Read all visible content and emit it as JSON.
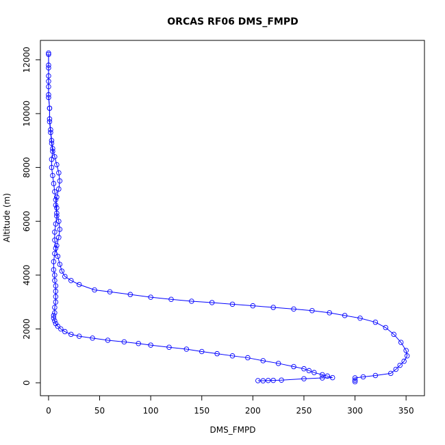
{
  "chart_data": {
    "type": "scatter",
    "title": "ORCAS RF06 DMS_FMPD",
    "xlabel": "DMS_FMPD",
    "ylabel": "Altitude (m)",
    "xlim": [
      -8,
      368
    ],
    "ylim": [
      -480,
      12720
    ],
    "x_ticks": [
      0,
      50,
      100,
      150,
      200,
      250,
      300,
      350
    ],
    "x_tick_labels": [
      "0",
      "50",
      "100",
      "150",
      "200",
      "250",
      "300",
      "350"
    ],
    "y_ticks": [
      0,
      2000,
      4000,
      6000,
      8000,
      10000,
      12000
    ],
    "y_tick_labels": [
      "0",
      "2000",
      "4000",
      "6000",
      "8000",
      "10000",
      "12000"
    ],
    "marker": "open-circle",
    "grid": false,
    "legend": "none",
    "colors": {
      "series": "#0000ff",
      "axis": "#000000",
      "background": "#ffffff"
    },
    "series": [
      {
        "color": "#0000ff",
        "points": [
          [
            205,
            80
          ],
          [
            210,
            75
          ],
          [
            215,
            85
          ],
          [
            220,
            90
          ],
          [
            228,
            100
          ],
          [
            250,
            150
          ],
          [
            268,
            180
          ],
          [
            278,
            190
          ],
          [
            273,
            250
          ],
          [
            268,
            300
          ],
          [
            260,
            380
          ],
          [
            255,
            450
          ],
          [
            250,
            520
          ],
          [
            240,
            600
          ],
          [
            225,
            720
          ],
          [
            210,
            820
          ],
          [
            195,
            930
          ],
          [
            180,
            1000
          ],
          [
            165,
            1080
          ],
          [
            150,
            1160
          ],
          [
            135,
            1250
          ],
          [
            118,
            1320
          ],
          [
            100,
            1400
          ],
          [
            88,
            1460
          ],
          [
            74,
            1520
          ],
          [
            58,
            1580
          ],
          [
            43,
            1660
          ],
          [
            30,
            1730
          ],
          [
            22,
            1800
          ],
          [
            16,
            1900
          ],
          [
            12,
            2000
          ],
          [
            9,
            2100
          ],
          [
            7,
            2200
          ],
          [
            6,
            2300
          ],
          [
            5,
            2400
          ],
          [
            5,
            2500
          ],
          [
            6,
            2600
          ],
          [
            6,
            2800
          ],
          [
            7,
            3000
          ],
          [
            7,
            3200
          ],
          [
            7,
            3400
          ],
          [
            7,
            3600
          ],
          [
            6,
            3800
          ],
          [
            6,
            4000
          ],
          [
            5,
            4200
          ],
          [
            5,
            4500
          ],
          [
            6,
            4800
          ],
          [
            8,
            5100
          ],
          [
            10,
            5400
          ],
          [
            11,
            5700
          ],
          [
            10,
            6000
          ],
          [
            8,
            6300
          ],
          [
            7,
            6600
          ],
          [
            8,
            6900
          ],
          [
            10,
            7200
          ],
          [
            11,
            7500
          ],
          [
            10,
            7800
          ],
          [
            8,
            8100
          ],
          [
            6,
            8400
          ],
          [
            4,
            8700
          ],
          [
            3,
            9000
          ],
          [
            2,
            9400
          ],
          [
            1,
            9800
          ],
          [
            1,
            10200
          ],
          [
            0,
            10600
          ],
          [
            0,
            11000
          ],
          [
            0,
            11400
          ],
          [
            0,
            11800
          ],
          [
            0,
            12250
          ]
        ]
      },
      {
        "color": "#0000ff",
        "points": [
          [
            0,
            12200
          ],
          [
            0,
            11700
          ],
          [
            0,
            11200
          ],
          [
            0,
            10700
          ],
          [
            1,
            10200
          ],
          [
            1,
            9700
          ],
          [
            2,
            9300
          ],
          [
            3,
            8900
          ],
          [
            4,
            8600
          ],
          [
            3,
            8300
          ],
          [
            3,
            8000
          ],
          [
            4,
            7700
          ],
          [
            5,
            7400
          ],
          [
            6,
            7100
          ],
          [
            7,
            6800
          ],
          [
            8,
            6500
          ],
          [
            8,
            6200
          ],
          [
            7,
            5900
          ],
          [
            6,
            5600
          ],
          [
            6,
            5300
          ],
          [
            7,
            5000
          ],
          [
            9,
            4700
          ],
          [
            11,
            4400
          ],
          [
            13,
            4150
          ],
          [
            16,
            3950
          ],
          [
            22,
            3800
          ],
          [
            30,
            3650
          ],
          [
            45,
            3450
          ],
          [
            60,
            3380
          ],
          [
            80,
            3280
          ],
          [
            100,
            3180
          ],
          [
            120,
            3100
          ],
          [
            140,
            3030
          ],
          [
            160,
            2980
          ],
          [
            180,
            2920
          ],
          [
            200,
            2860
          ],
          [
            220,
            2800
          ],
          [
            240,
            2740
          ],
          [
            258,
            2680
          ],
          [
            275,
            2600
          ],
          [
            290,
            2500
          ],
          [
            305,
            2400
          ],
          [
            320,
            2250
          ],
          [
            330,
            2050
          ],
          [
            338,
            1800
          ],
          [
            345,
            1500
          ],
          [
            350,
            1200
          ],
          [
            351,
            1000
          ],
          [
            348,
            800
          ],
          [
            344,
            650
          ],
          [
            340,
            500
          ],
          [
            335,
            350
          ],
          [
            320,
            270
          ],
          [
            308,
            220
          ],
          [
            300,
            180
          ],
          [
            300,
            100
          ],
          [
            300,
            40
          ]
        ]
      }
    ]
  }
}
